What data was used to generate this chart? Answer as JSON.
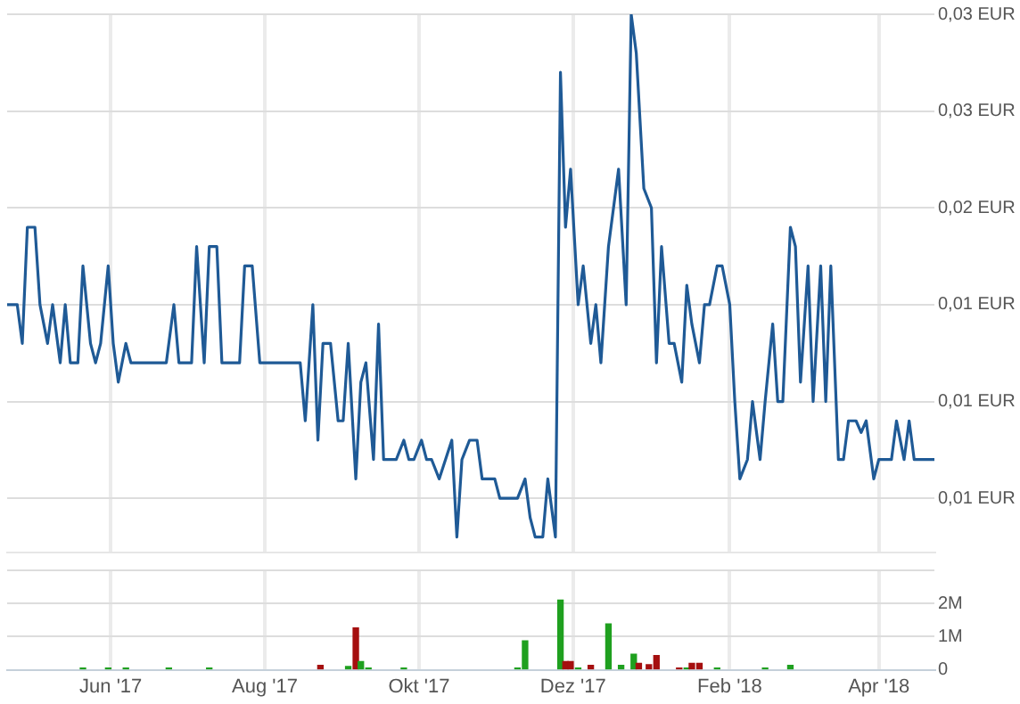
{
  "chart_data": [
    {
      "type": "line",
      "tick_labels": "y",
      "grid": true,
      "xlim": [
        "2017-04-21",
        "2018-04-23"
      ],
      "xticks": [
        {
          "value": "2017-06-01",
          "label": null
        },
        {
          "value": "2017-08-01",
          "label": null
        },
        {
          "value": "2017-10-01",
          "label": null
        },
        {
          "value": "2017-12-01",
          "label": null
        },
        {
          "value": "2018-02-01",
          "label": null
        },
        {
          "value": "2018-04-01",
          "label": null
        }
      ],
      "ylim": [
        0.0022,
        0.03
      ],
      "yticks": [
        {
          "value": 0.005,
          "label": "0,01 EUR"
        },
        {
          "value": 0.01,
          "label": "0,01 EUR"
        },
        {
          "value": 0.015,
          "label": "0,01 EUR"
        },
        {
          "value": 0.02,
          "label": "0,02 EUR"
        },
        {
          "value": 0.025,
          "label": "0,03 EUR"
        },
        {
          "value": 0.03,
          "label": "0,03 EUR"
        }
      ],
      "series": [
        {
          "color": "#1f5a96",
          "x": [
            "2017-04-21",
            "2017-04-25",
            "2017-04-27",
            "2017-04-29",
            "2017-05-02",
            "2017-05-04",
            "2017-05-07",
            "2017-05-09",
            "2017-05-12",
            "2017-05-14",
            "2017-05-16",
            "2017-05-19",
            "2017-05-21",
            "2017-05-24",
            "2017-05-26",
            "2017-05-28",
            "2017-05-31",
            "2017-06-02",
            "2017-06-04",
            "2017-06-07",
            "2017-06-09",
            "2017-06-23",
            "2017-06-26",
            "2017-06-28",
            "2017-07-03",
            "2017-07-05",
            "2017-07-08",
            "2017-07-10",
            "2017-07-13",
            "2017-07-15",
            "2017-07-22",
            "2017-07-24",
            "2017-07-27",
            "2017-07-30",
            "2017-08-15",
            "2017-08-17",
            "2017-08-20",
            "2017-08-22",
            "2017-08-24",
            "2017-08-27",
            "2017-08-30",
            "2017-09-01",
            "2017-09-03",
            "2017-09-06",
            "2017-09-08",
            "2017-09-10",
            "2017-09-13",
            "2017-09-15",
            "2017-09-17",
            "2017-09-22",
            "2017-09-25",
            "2017-09-27",
            "2017-09-29",
            "2017-10-02",
            "2017-10-04",
            "2017-10-06",
            "2017-10-09",
            "2017-10-14",
            "2017-10-16",
            "2017-10-18",
            "2017-10-21",
            "2017-10-24",
            "2017-10-26",
            "2017-10-31",
            "2017-11-02",
            "2017-11-09",
            "2017-11-12",
            "2017-11-14",
            "2017-11-16",
            "2017-11-19",
            "2017-11-21",
            "2017-11-24",
            "2017-11-26",
            "2017-11-28",
            "2017-11-30",
            "2017-12-03",
            "2017-12-05",
            "2017-12-08",
            "2017-12-10",
            "2017-12-12",
            "2017-12-15",
            "2017-12-17",
            "2017-12-19",
            "2017-12-22",
            "2017-12-24",
            "2017-12-26",
            "2017-12-29",
            "2018-01-01",
            "2018-01-03",
            "2018-01-05",
            "2018-01-08",
            "2018-01-10",
            "2018-01-13",
            "2018-01-15",
            "2018-01-17",
            "2018-01-20",
            "2018-01-22",
            "2018-01-24",
            "2018-01-27",
            "2018-01-29",
            "2018-02-01",
            "2018-02-03",
            "2018-02-05",
            "2018-02-08",
            "2018-02-10",
            "2018-02-13",
            "2018-02-15",
            "2018-02-18",
            "2018-02-20",
            "2018-02-22",
            "2018-02-25",
            "2018-02-27",
            "2018-03-01",
            "2018-03-04",
            "2018-03-06",
            "2018-03-09",
            "2018-03-11",
            "2018-03-13",
            "2018-03-16",
            "2018-03-18",
            "2018-03-20",
            "2018-03-23",
            "2018-03-25",
            "2018-03-27",
            "2018-03-30",
            "2018-04-01",
            "2018-04-06",
            "2018-04-08",
            "2018-04-11",
            "2018-04-13",
            "2018-04-15",
            "2018-04-23"
          ],
          "values": [
            0.015,
            0.015,
            0.013,
            0.019,
            0.019,
            0.015,
            0.013,
            0.015,
            0.012,
            0.015,
            0.012,
            0.012,
            0.017,
            0.013,
            0.012,
            0.013,
            0.017,
            0.013,
            0.011,
            0.013,
            0.012,
            0.012,
            0.015,
            0.012,
            0.012,
            0.018,
            0.012,
            0.018,
            0.018,
            0.012,
            0.012,
            0.017,
            0.017,
            0.012,
            0.012,
            0.009,
            0.015,
            0.008,
            0.013,
            0.013,
            0.009,
            0.009,
            0.013,
            0.006,
            0.011,
            0.012,
            0.007,
            0.014,
            0.007,
            0.007,
            0.008,
            0.007,
            0.007,
            0.008,
            0.007,
            0.007,
            0.006,
            0.008,
            0.003,
            0.007,
            0.008,
            0.008,
            0.006,
            0.006,
            0.005,
            0.005,
            0.006,
            0.004,
            0.003,
            0.003,
            0.006,
            0.003,
            0.027,
            0.019,
            0.022,
            0.015,
            0.017,
            0.013,
            0.015,
            0.012,
            0.018,
            0.02,
            0.022,
            0.015,
            0.03,
            0.028,
            0.021,
            0.02,
            0.012,
            0.018,
            0.013,
            0.013,
            0.011,
            0.016,
            0.014,
            0.012,
            0.015,
            0.015,
            0.017,
            0.017,
            0.015,
            0.01,
            0.006,
            0.007,
            0.01,
            0.007,
            0.01,
            0.014,
            0.01,
            0.01,
            0.019,
            0.018,
            0.011,
            0.017,
            0.01,
            0.017,
            0.01,
            0.017,
            0.007,
            0.007,
            0.009,
            0.009,
            0.0084,
            0.009,
            0.006,
            0.007,
            0.007,
            0.009,
            0.007,
            0.009,
            0.007,
            0.007
          ]
        }
      ]
    },
    {
      "type": "bar",
      "grid": true,
      "xlim": [
        "2017-04-21",
        "2018-04-23"
      ],
      "xticks": [
        {
          "value": "2017-06-01",
          "label": "Jun '17"
        },
        {
          "value": "2017-08-01",
          "label": "Aug '17"
        },
        {
          "value": "2017-10-01",
          "label": "Okt '17"
        },
        {
          "value": "2017-12-01",
          "label": "Dez '17"
        },
        {
          "value": "2018-02-01",
          "label": "Feb '18"
        },
        {
          "value": "2018-04-01",
          "label": "Apr '18"
        }
      ],
      "ylim": [
        0,
        3000000
      ],
      "yticks": [
        {
          "value": 0,
          "label": "0"
        },
        {
          "value": 1000000,
          "label": "1M"
        },
        {
          "value": 2000000,
          "label": "2M"
        },
        {
          "value": 3000000,
          "label": null
        }
      ],
      "x": [
        "2017-05-21",
        "2017-05-31",
        "2017-06-07",
        "2017-06-24",
        "2017-07-10",
        "2017-08-23",
        "2017-09-03",
        "2017-09-06",
        "2017-09-08",
        "2017-09-11",
        "2017-09-25",
        "2017-11-09",
        "2017-11-12",
        "2017-11-26",
        "2017-11-28",
        "2017-11-30",
        "2017-12-03",
        "2017-12-08",
        "2017-12-15",
        "2017-12-20",
        "2017-12-25",
        "2017-12-27",
        "2017-12-31",
        "2018-01-03",
        "2018-01-12",
        "2018-01-15",
        "2018-01-17",
        "2018-01-20",
        "2018-01-27",
        "2018-02-15",
        "2018-02-25"
      ],
      "values": [
        50000,
        50000,
        50000,
        50000,
        50000,
        130000,
        100000,
        1260000,
        250000,
        50000,
        50000,
        50000,
        870000,
        2100000,
        250000,
        250000,
        50000,
        130000,
        1380000,
        130000,
        470000,
        190000,
        150000,
        430000,
        50000,
        50000,
        190000,
        190000,
        50000,
        50000,
        130000
      ],
      "colors": [
        "#1fa01f",
        "#1fa01f",
        "#1fa01f",
        "#1fa01f",
        "#1fa01f",
        "#a50f0f",
        "#1fa01f",
        "#a50f0f",
        "#1fa01f",
        "#1fa01f",
        "#1fa01f",
        "#1fa01f",
        "#1fa01f",
        "#1fa01f",
        "#a50f0f",
        "#a50f0f",
        "#1fa01f",
        "#a50f0f",
        "#1fa01f",
        "#1fa01f",
        "#1fa01f",
        "#a50f0f",
        "#a50f0f",
        "#a50f0f",
        "#a50f0f",
        "#1fa01f",
        "#a50f0f",
        "#a50f0f",
        "#1fa01f",
        "#1fa01f",
        "#1fa01f"
      ]
    }
  ]
}
